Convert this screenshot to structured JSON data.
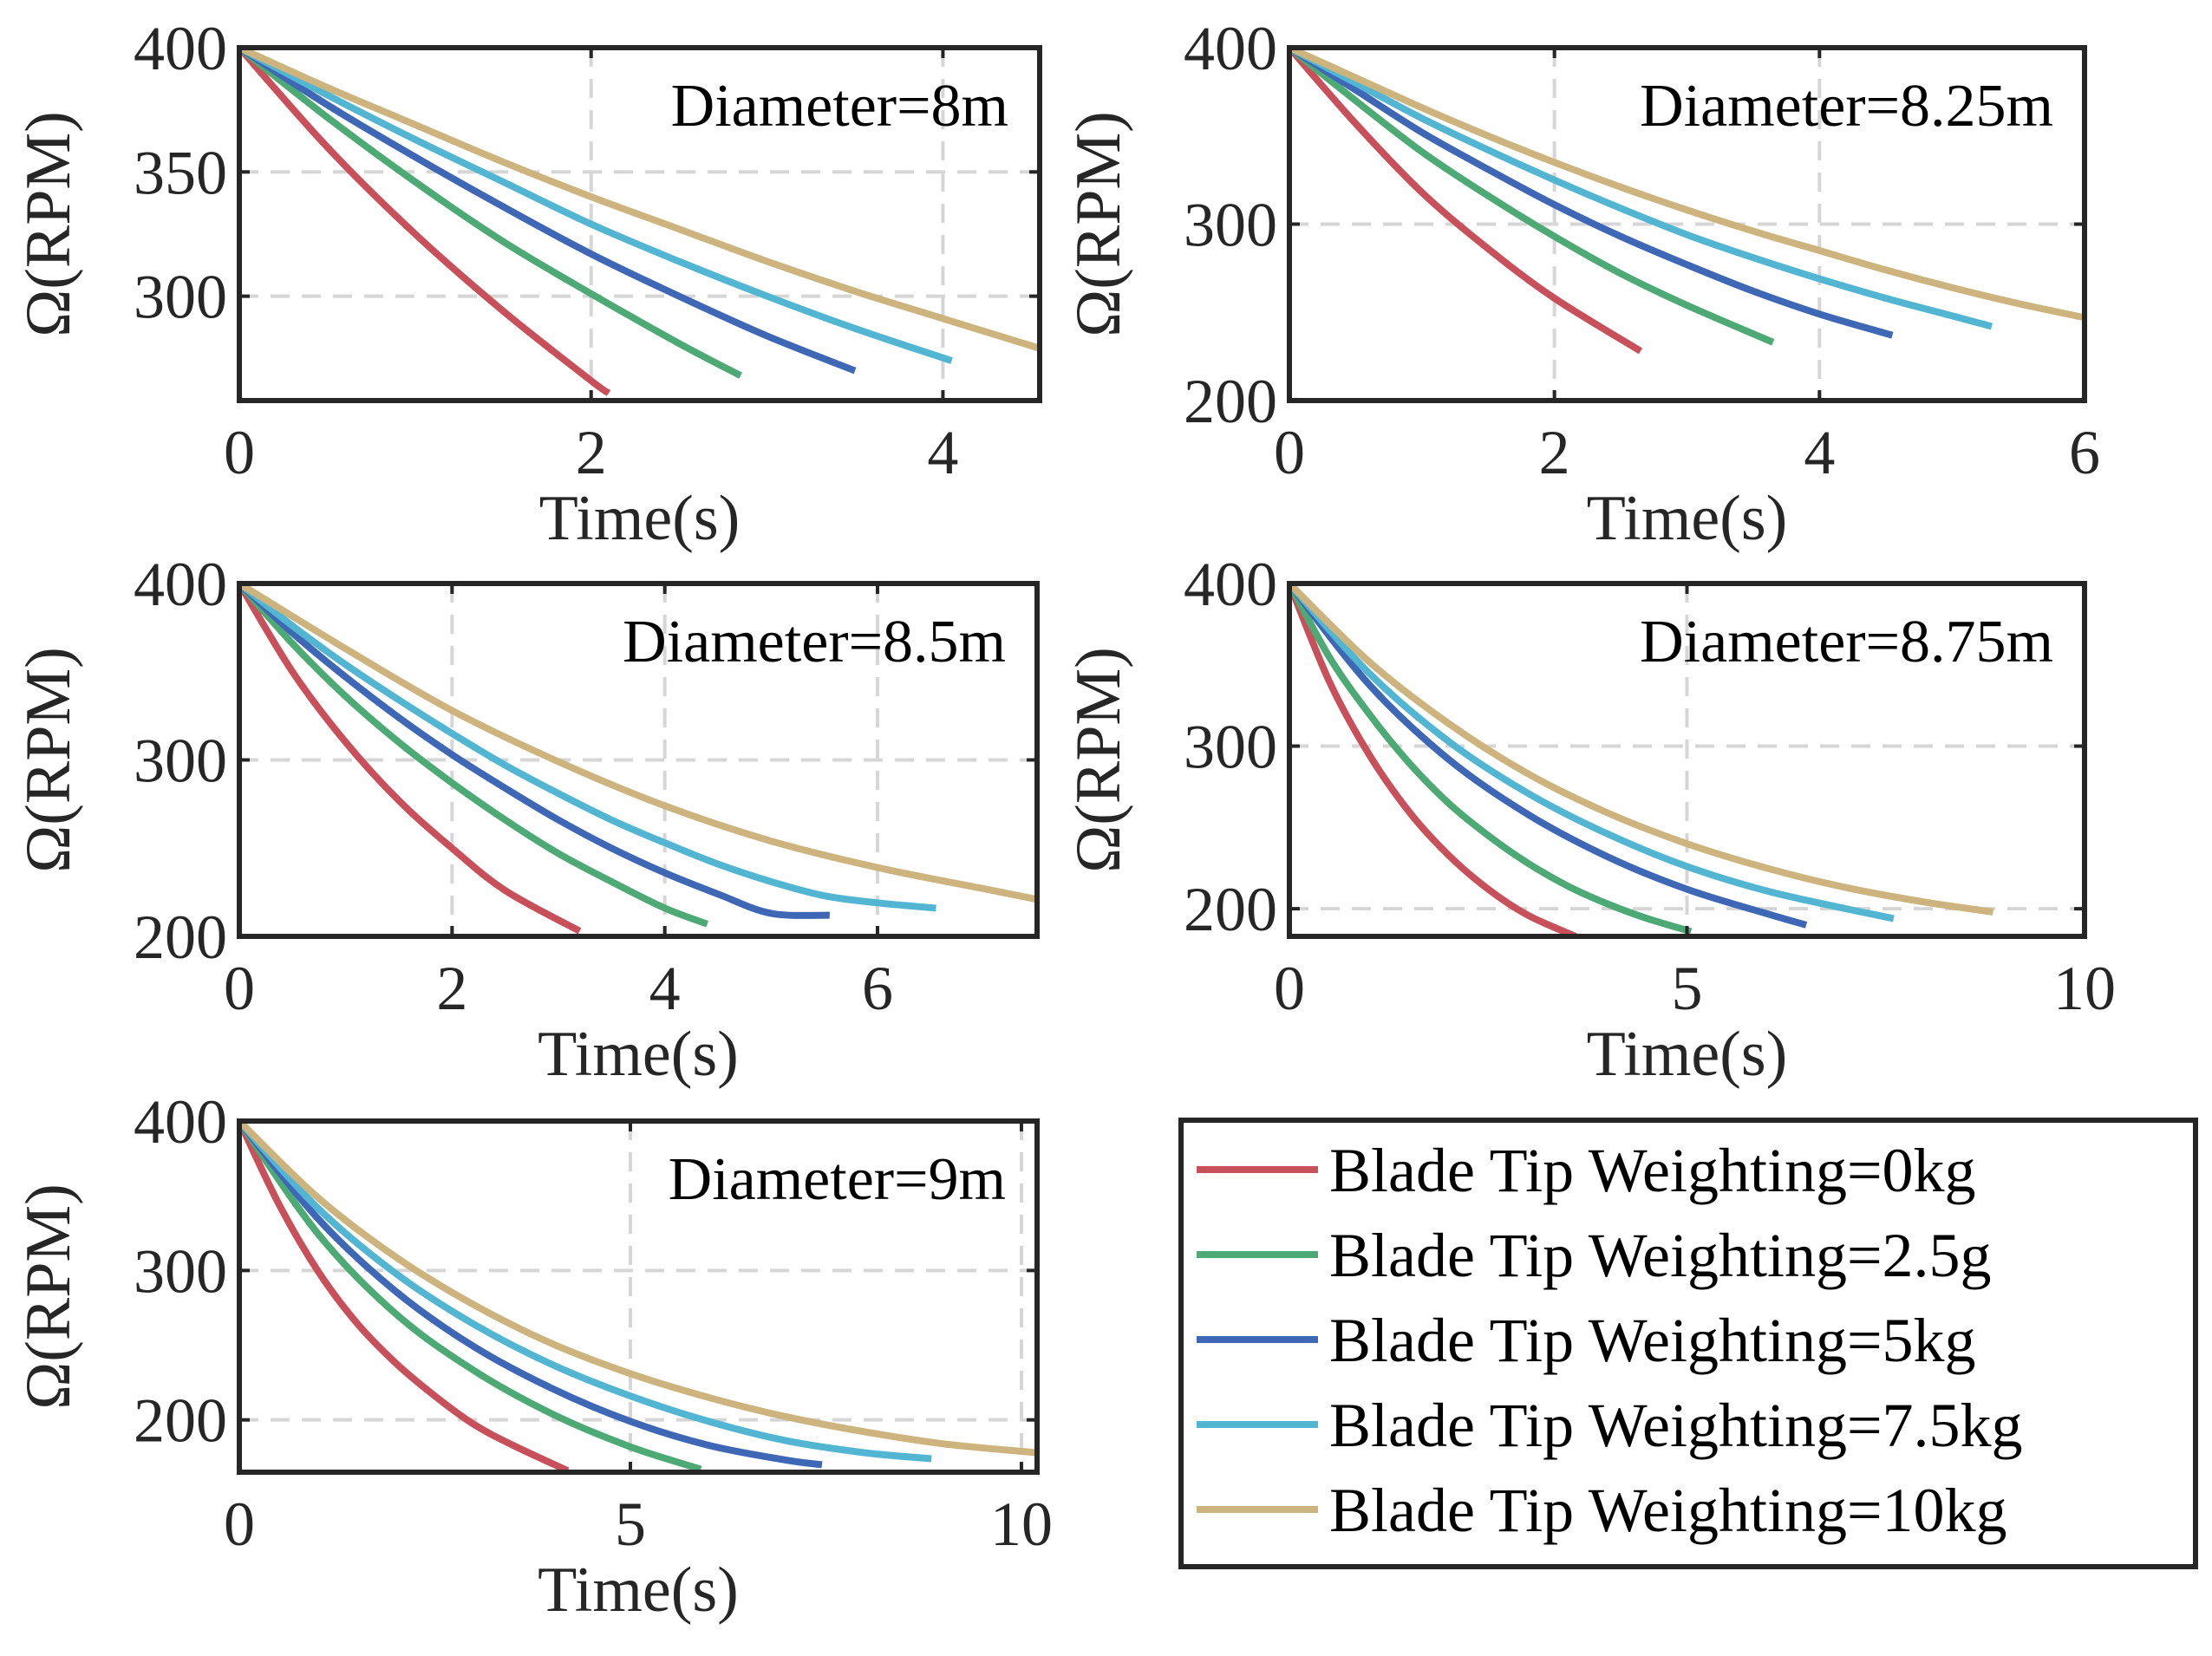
{
  "colors": {
    "red": "#C8505A",
    "green": "#4DAA74",
    "blue": "#3E68B5",
    "cyan": "#52B6D3",
    "tan": "#CDB47E",
    "axis": "#262626",
    "grid": "#D6D6D6"
  },
  "legend": {
    "placement": "bottom-right",
    "items": [
      {
        "label": "Blade Tip Weighting=0kg",
        "color": "#C8505A"
      },
      {
        "label": "Blade Tip Weighting=2.5g",
        "color": "#4DAA74"
      },
      {
        "label": "Blade Tip Weighting=5kg",
        "color": "#3E68B5"
      },
      {
        "label": "Blade Tip Weighting=7.5kg",
        "color": "#52B6D3"
      },
      {
        "label": "Blade Tip Weighting=10kg",
        "color": "#CDB47E"
      }
    ]
  },
  "chart_data": [
    {
      "type": "line",
      "annotation": "Diameter=8m",
      "xlabel": "Time(s)",
      "ylabel": "Ω(RPM)",
      "xlim": [
        0,
        4.55
      ],
      "ylim": [
        258,
        400
      ],
      "xticks": [
        0,
        2,
        4
      ],
      "yticks": [
        300,
        350,
        400
      ],
      "grid": true,
      "series": [
        {
          "color_key": "red",
          "x": [
            0,
            0.5,
            1,
            1.5,
            2,
            2.1
          ],
          "y": [
            400,
            360,
            325,
            294,
            266,
            261
          ]
        },
        {
          "color_key": "green",
          "x": [
            0,
            0.5,
            1,
            1.5,
            2,
            2.5,
            2.85
          ],
          "y": [
            400,
            372,
            346,
            322,
            301,
            281,
            268
          ]
        },
        {
          "color_key": "blue",
          "x": [
            0,
            0.5,
            1,
            1.5,
            2,
            2.5,
            3,
            3.5
          ],
          "y": [
            400,
            377,
            356,
            336,
            317,
            300,
            284,
            270
          ]
        },
        {
          "color_key": "cyan",
          "x": [
            0,
            0.5,
            1,
            1.5,
            2,
            2.5,
            3,
            3.5,
            4.05
          ],
          "y": [
            400,
            381,
            363,
            346,
            329,
            314,
            300,
            287,
            274
          ]
        },
        {
          "color_key": "tan",
          "x": [
            0,
            0.5,
            1,
            1.5,
            2,
            2.5,
            3,
            3.5,
            4,
            4.55
          ],
          "y": [
            400,
            384,
            369,
            354,
            340,
            327,
            314,
            302,
            291,
            279
          ]
        }
      ]
    },
    {
      "type": "line",
      "annotation": "Diameter=8.25m",
      "xlabel": "Time(s)",
      "ylabel": "Ω(RPM)",
      "xlim": [
        0,
        6
      ],
      "ylim": [
        200,
        400
      ],
      "xticks": [
        0,
        2,
        4,
        6
      ],
      "yticks": [
        200,
        300,
        400
      ],
      "grid": true,
      "series": [
        {
          "color_key": "red",
          "x": [
            0,
            0.5,
            1,
            1.5,
            2,
            2.65
          ],
          "y": [
            400,
            357,
            318,
            286,
            258,
            228
          ]
        },
        {
          "color_key": "green",
          "x": [
            0,
            0.5,
            1,
            1.5,
            2,
            2.5,
            3,
            3.65
          ],
          "y": [
            400,
            370,
            341,
            316,
            293,
            272,
            254,
            233
          ]
        },
        {
          "color_key": "blue",
          "x": [
            0,
            0.5,
            1,
            1.5,
            2,
            2.5,
            3,
            3.5,
            4,
            4.55
          ],
          "y": [
            400,
            376,
            352,
            331,
            311,
            293,
            277,
            262,
            249,
            237
          ]
        },
        {
          "color_key": "cyan",
          "x": [
            0,
            0.5,
            1,
            1.5,
            2,
            2.5,
            3,
            3.5,
            4,
            4.5,
            5,
            5.3
          ],
          "y": [
            400,
            380,
            360,
            342,
            325,
            309,
            294,
            281,
            269,
            258,
            248,
            242
          ]
        },
        {
          "color_key": "tan",
          "x": [
            0,
            0.5,
            1,
            1.5,
            2,
            2.5,
            3,
            3.5,
            4,
            4.5,
            5,
            5.5,
            6
          ],
          "y": [
            400,
            383,
            366,
            350,
            335,
            321,
            308,
            296,
            285,
            274,
            264,
            255,
            247
          ]
        }
      ]
    },
    {
      "type": "line",
      "annotation": "Diameter=8.5m",
      "xlabel": "Time(s)",
      "ylabel": "Ω(RPM)",
      "xlim": [
        0,
        7.5
      ],
      "ylim": [
        200,
        400
      ],
      "xticks": [
        0,
        2,
        4,
        6
      ],
      "yticks": [
        200,
        300,
        400
      ],
      "grid": true,
      "series": [
        {
          "color_key": "red",
          "x": [
            0,
            0.5,
            1,
            1.5,
            2,
            2.5,
            3.2
          ],
          "y": [
            400,
            350,
            310,
            277,
            250,
            226,
            203
          ]
        },
        {
          "color_key": "green",
          "x": [
            0,
            0.5,
            1,
            1.5,
            2,
            2.5,
            3,
            3.5,
            4,
            4.4
          ],
          "y": [
            400,
            366,
            336,
            310,
            287,
            266,
            247,
            231,
            216,
            207
          ]
        },
        {
          "color_key": "blue",
          "x": [
            0,
            0.5,
            1,
            1.5,
            2,
            2.5,
            3,
            3.5,
            4,
            4.5,
            5,
            5.55
          ],
          "y": [
            400,
            372,
            347,
            324,
            303,
            284,
            266,
            250,
            236,
            224,
            213,
            212
          ]
        },
        {
          "color_key": "cyan",
          "x": [
            0,
            0.5,
            1,
            1.5,
            2,
            2.5,
            3,
            3.5,
            4,
            4.5,
            5,
            5.5,
            6,
            6.55
          ],
          "y": [
            400,
            376,
            354,
            334,
            315,
            297,
            281,
            266,
            253,
            241,
            231,
            223,
            219,
            216
          ]
        },
        {
          "color_key": "tan",
          "x": [
            0,
            1,
            2,
            3,
            4,
            5,
            6,
            7,
            7.5
          ],
          "y": [
            400,
            363,
            328,
            299,
            274,
            254,
            239,
            227,
            221
          ]
        }
      ]
    },
    {
      "type": "line",
      "annotation": "Diameter=8.75m",
      "xlabel": "Time(s)",
      "ylabel": "Ω(RPM)",
      "xlim": [
        0,
        10
      ],
      "ylim": [
        183,
        400
      ],
      "xticks": [
        0,
        5,
        10
      ],
      "yticks": [
        200,
        300,
        400
      ],
      "grid": true,
      "series": [
        {
          "color_key": "red",
          "x": [
            0,
            0.5,
            1,
            1.5,
            2,
            2.5,
            3,
            3.6
          ],
          "y": [
            400,
            340,
            295,
            260,
            233,
            212,
            196,
            183
          ]
        },
        {
          "color_key": "green",
          "x": [
            0,
            0.5,
            1,
            1.5,
            2,
            2.5,
            3,
            3.5,
            4,
            4.5,
            5.05
          ],
          "y": [
            400,
            355,
            320,
            290,
            265,
            245,
            228,
            214,
            203,
            194,
            186
          ]
        },
        {
          "color_key": "blue",
          "x": [
            0,
            1,
            2,
            3,
            4,
            5,
            6,
            6.5
          ],
          "y": [
            400,
            338,
            292,
            258,
            232,
            212,
            197,
            190
          ]
        },
        {
          "color_key": "cyan",
          "x": [
            0,
            1,
            2,
            3,
            4,
            5,
            6,
            7,
            7.6
          ],
          "y": [
            400,
            345,
            303,
            271,
            246,
            226,
            211,
            200,
            194
          ]
        },
        {
          "color_key": "tan",
          "x": [
            0,
            1,
            2,
            3,
            4,
            5,
            6,
            7,
            8,
            8.85
          ],
          "y": [
            400,
            352,
            314,
            283,
            259,
            240,
            225,
            213,
            204,
            198
          ]
        }
      ]
    },
    {
      "type": "line",
      "annotation": "Diameter=9m",
      "xlabel": "Time(s)",
      "ylabel": "Ω(RPM)",
      "xlim": [
        0,
        10.2
      ],
      "ylim": [
        165,
        400
      ],
      "xticks": [
        0,
        5,
        10
      ],
      "yticks": [
        200,
        300,
        400
      ],
      "grid": true,
      "series": [
        {
          "color_key": "red",
          "x": [
            0,
            0.5,
            1,
            1.5,
            2,
            2.5,
            3,
            3.5,
            4.2
          ],
          "y": [
            400,
            345,
            300,
            265,
            238,
            216,
            197,
            183,
            166
          ]
        },
        {
          "color_key": "green",
          "x": [
            0,
            1,
            2,
            3,
            4,
            5,
            5.9
          ],
          "y": [
            400,
            325,
            271,
            233,
            204,
            182,
            167
          ]
        },
        {
          "color_key": "blue",
          "x": [
            0,
            1,
            2,
            3,
            4,
            5,
            6,
            7,
            7.45
          ],
          "y": [
            400,
            335,
            286,
            249,
            221,
            199,
            183,
            173,
            170
          ]
        },
        {
          "color_key": "cyan",
          "x": [
            0,
            1,
            2,
            3,
            4,
            5,
            6,
            7,
            8,
            8.85
          ],
          "y": [
            400,
            342,
            298,
            264,
            237,
            216,
            199,
            186,
            178,
            174
          ]
        },
        {
          "color_key": "tan",
          "x": [
            0,
            1,
            2,
            3,
            4,
            5,
            6,
            7,
            8,
            9,
            10.2
          ],
          "y": [
            400,
            349,
            309,
            277,
            251,
            231,
            215,
            202,
            192,
            184,
            178
          ]
        }
      ]
    }
  ]
}
